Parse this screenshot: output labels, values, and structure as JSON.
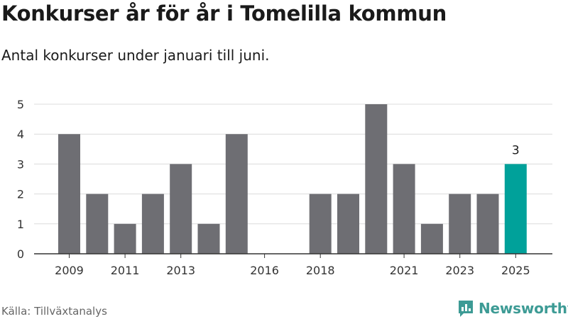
{
  "header": {
    "title": "Konkurser år för år i Tomelilla kommun",
    "subtitle": "Antal konkurser under januari till juni."
  },
  "footer": {
    "source": "Källa: Tillväxtanalys",
    "brand": "Newsworthy"
  },
  "chart_data": {
    "type": "bar",
    "categories": [
      "2009",
      "2010",
      "2011",
      "2012",
      "2013",
      "2014",
      "2015",
      "2016",
      "2017",
      "2018",
      "2019",
      "2020",
      "2021",
      "2022",
      "2023",
      "2024",
      "2025"
    ],
    "values": [
      4,
      2,
      1,
      2,
      3,
      1,
      4,
      0,
      0,
      2,
      2,
      5,
      3,
      1,
      2,
      2,
      3
    ],
    "x_tick_labels": [
      "2009",
      "2011",
      "2013",
      "2016",
      "2018",
      "2021",
      "2023",
      "2025"
    ],
    "y_ticks": [
      0,
      1,
      2,
      3,
      4,
      5
    ],
    "ylim": [
      0,
      5
    ],
    "grid": true,
    "bar_color": "#6e6e73",
    "highlight_color": "#00a19a",
    "highlight_category": "2025",
    "highlight_label": "3"
  }
}
